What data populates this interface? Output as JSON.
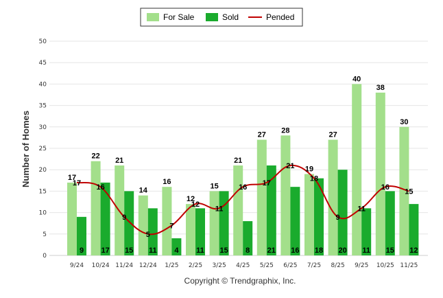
{
  "chart_data": {
    "type": "bar",
    "ylabel": "Number of Homes",
    "ylim": [
      0,
      50
    ],
    "yticks": [
      0,
      5,
      10,
      15,
      20,
      25,
      30,
      35,
      40,
      45,
      50
    ],
    "categories": [
      "9/24",
      "10/24",
      "11/24",
      "12/24",
      "1/25",
      "2/25",
      "3/25",
      "4/25",
      "5/25",
      "6/25",
      "7/25",
      "8/25",
      "9/25",
      "10/25",
      "11/25"
    ],
    "series": [
      {
        "name": "For Sale",
        "kind": "bar",
        "color": "#a3df8b",
        "values": [
          17,
          22,
          21,
          14,
          16,
          12,
          15,
          21,
          27,
          28,
          19,
          27,
          40,
          38,
          30
        ]
      },
      {
        "name": "Sold",
        "kind": "bar",
        "color": "#1aab2d",
        "values": [
          9,
          17,
          15,
          11,
          4,
          11,
          15,
          8,
          21,
          16,
          18,
          20,
          11,
          15,
          12
        ]
      },
      {
        "name": "Pended",
        "kind": "line",
        "color": "#c00000",
        "values": [
          17,
          16,
          9,
          5,
          7,
          12,
          11,
          16,
          17,
          21,
          18,
          9,
          11,
          16,
          15
        ]
      }
    ],
    "legend": "top-center",
    "grid": true
  },
  "footer": {
    "copyright": "Copyright © Trendgraphix, Inc."
  }
}
